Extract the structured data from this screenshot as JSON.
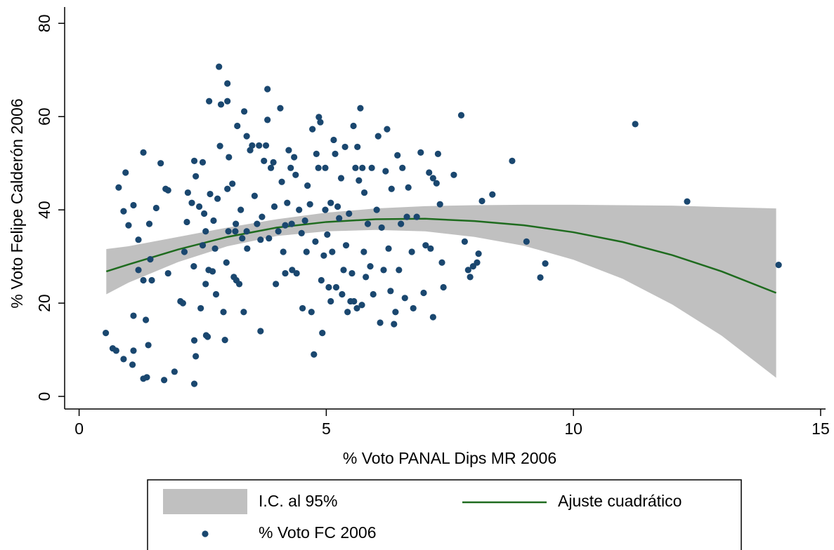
{
  "chart_data": {
    "type": "scatter",
    "xlabel": "% Voto PANAL Dips MR 2006",
    "ylabel": "% Voto Felipe Calderón 2006",
    "xlim": [
      -0.25,
      15.1
    ],
    "ylim": [
      -2.7,
      83.5
    ],
    "xticks": [
      0,
      5,
      10,
      15
    ],
    "yticks": [
      0,
      20,
      40,
      60,
      80
    ],
    "grid": false,
    "legend": "bottom",
    "series": [
      {
        "name": "I.C. al 95%",
        "type": "band",
        "color": "#c0c0c0",
        "x": [
          0.55,
          1,
          2,
          3,
          4,
          5,
          6,
          7,
          8,
          9,
          10,
          11,
          12,
          13,
          14.1
        ],
        "lower": [
          21.9,
          24.4,
          28.8,
          32.2,
          34.4,
          35.4,
          35.7,
          35.4,
          34.2,
          32.3,
          29.3,
          25.2,
          19.7,
          13.0,
          4.0
        ],
        "upper": [
          31.6,
          32.2,
          34.2,
          36.2,
          38.0,
          39.4,
          40.3,
          40.8,
          41.0,
          41.1,
          41.1,
          41.0,
          40.9,
          40.6,
          40.3
        ]
      },
      {
        "name": "Ajuste cuadrático",
        "type": "line",
        "color": "#1e6b1e",
        "x": [
          0.55,
          1,
          2,
          3,
          4,
          5,
          6,
          7,
          8,
          9,
          10,
          11,
          12,
          13,
          14.1
        ],
        "values": [
          26.8,
          28.3,
          31.5,
          34.2,
          36.2,
          37.4,
          38.0,
          38.1,
          37.6,
          36.7,
          35.2,
          33.1,
          30.3,
          26.8,
          22.2
        ]
      },
      {
        "name": "% Voto FC 2006",
        "type": "scatter",
        "color": "#1a476f",
        "x": [
          0.54,
          0.68,
          0.75,
          0.8,
          0.94,
          0.9,
          1.0,
          0.9,
          1.08,
          1.1,
          1.1,
          1.1,
          1.2,
          1.2,
          1.3,
          1.3,
          1.3,
          1.37,
          1.4,
          1.35,
          1.44,
          1.42,
          1.47,
          1.56,
          1.65,
          1.72,
          1.75,
          1.8,
          1.8,
          1.93,
          2.05,
          2.1,
          2.13,
          2.18,
          2.2,
          2.28,
          2.33,
          2.33,
          2.33,
          2.36,
          2.32,
          2.36,
          2.43,
          2.46,
          2.5,
          2.5,
          2.53,
          2.56,
          2.56,
          2.57,
          2.6,
          2.62,
          2.63,
          2.65,
          2.7,
          2.75,
          2.72,
          2.77,
          2.8,
          2.83,
          2.85,
          2.87,
          2.92,
          2.95,
          2.98,
          3.0,
          3.0,
          3.0,
          3.02,
          3.03,
          3.1,
          3.13,
          3.16,
          3.17,
          3.18,
          3.2,
          3.24,
          3.27,
          3.3,
          3.33,
          3.34,
          3.39,
          3.39,
          3.4,
          3.46,
          3.5,
          3.55,
          3.6,
          3.64,
          3.67,
          3.67,
          3.7,
          3.74,
          3.78,
          3.81,
          3.81,
          3.84,
          3.88,
          3.93,
          3.95,
          3.98,
          4.03,
          4.07,
          4.1,
          4.13,
          4.17,
          4.17,
          4.21,
          4.24,
          4.28,
          4.3,
          4.31,
          4.35,
          4.38,
          4.4,
          4.45,
          4.5,
          4.52,
          4.57,
          4.6,
          4.62,
          4.67,
          4.7,
          4.72,
          4.75,
          4.78,
          4.8,
          4.84,
          4.85,
          4.88,
          4.9,
          4.92,
          4.95,
          4.98,
          4.98,
          5.02,
          5.05,
          5.09,
          5.09,
          5.12,
          5.15,
          5.18,
          5.2,
          5.23,
          5.26,
          5.3,
          5.32,
          5.35,
          5.38,
          5.4,
          5.43,
          5.46,
          5.49,
          5.52,
          5.55,
          5.56,
          5.59,
          5.62,
          5.63,
          5.66,
          5.69,
          5.72,
          5.73,
          5.76,
          5.77,
          5.8,
          5.84,
          5.89,
          5.92,
          5.95,
          6.02,
          6.05,
          6.09,
          6.12,
          6.16,
          6.2,
          6.23,
          6.26,
          6.3,
          6.32,
          6.37,
          6.4,
          6.44,
          6.47,
          6.51,
          6.54,
          6.59,
          6.63,
          6.66,
          6.73,
          6.76,
          6.83,
          6.91,
          6.97,
          7.01,
          7.08,
          7.11,
          7.16,
          7.16,
          7.23,
          7.26,
          7.3,
          7.34,
          7.37,
          7.58,
          7.73,
          7.8,
          7.87,
          7.91,
          7.97,
          8.05,
          8.08,
          8.15,
          8.36,
          8.76,
          9.05,
          9.33,
          9.43,
          11.25,
          12.3,
          14.15
        ],
        "values": [
          13.6,
          10.3,
          9.8,
          44.8,
          48,
          39.7,
          36.7,
          8,
          6.8,
          9.8,
          17.3,
          41,
          27.1,
          33.6,
          52.3,
          24.9,
          3.8,
          4.1,
          11,
          16.4,
          29.4,
          37,
          24.9,
          40.4,
          50,
          3.5,
          44.5,
          44.2,
          26.4,
          5.3,
          20.4,
          20,
          31,
          37.4,
          43.7,
          41.5,
          50.5,
          2.7,
          12,
          8.6,
          27.9,
          47.2,
          40.7,
          18.9,
          32.4,
          50.2,
          39.2,
          24.1,
          35.4,
          13.1,
          12.8,
          27.1,
          63.3,
          43.4,
          26.8,
          31.7,
          37.7,
          21.9,
          42.4,
          70.7,
          53.7,
          62.6,
          18.1,
          12.1,
          28.7,
          44.5,
          67.1,
          63.3,
          35.4,
          51.3,
          45.6,
          25.6,
          35.4,
          37,
          24.9,
          58,
          24.1,
          40,
          33.9,
          18.1,
          61.1,
          55.8,
          35.4,
          31.7,
          52.8,
          53.8,
          43,
          37,
          53.8,
          33.6,
          14,
          38.5,
          50.5,
          53.8,
          65.9,
          59.3,
          33.9,
          49,
          50.2,
          40.7,
          24.1,
          35.4,
          61.8,
          46,
          31,
          36.7,
          26.4,
          41.5,
          52.8,
          49,
          37,
          27.1,
          51.3,
          47.5,
          26.4,
          40,
          35,
          18.9,
          37.7,
          31,
          45.2,
          41.2,
          18.1,
          57.3,
          9,
          33.2,
          52,
          49,
          59.9,
          58.8,
          24.9,
          13.6,
          30.2,
          49,
          40,
          34.7,
          23.4,
          20.4,
          41.5,
          31,
          55,
          52,
          23.4,
          40.7,
          38.2,
          46.8,
          21.9,
          27.1,
          53.5,
          32.4,
          18.1,
          39.2,
          20.4,
          26.4,
          58,
          20.4,
          49,
          18.9,
          53.5,
          46.3,
          61.8,
          19.6,
          49,
          31,
          43.7,
          25.6,
          37,
          27.9,
          49,
          21.9,
          40,
          55.8,
          15.8,
          36.2,
          27.1,
          48.3,
          57.3,
          31.7,
          22.6,
          44.5,
          15.5,
          18.1,
          51.7,
          27.1,
          37,
          49,
          21.1,
          38.5,
          44.8,
          31,
          18.9,
          38.5,
          52.3,
          22.2,
          32.4,
          48,
          31.7,
          46.8,
          17,
          45.7,
          52,
          41.2,
          28.7,
          23.4,
          47.5,
          60.3,
          33.2,
          27.1,
          25.6,
          27.9,
          28.7,
          30.6,
          41.9,
          43.3,
          50.5,
          33.2,
          25.5,
          28.5,
          58.4,
          41.8,
          28.2
        ]
      }
    ]
  }
}
